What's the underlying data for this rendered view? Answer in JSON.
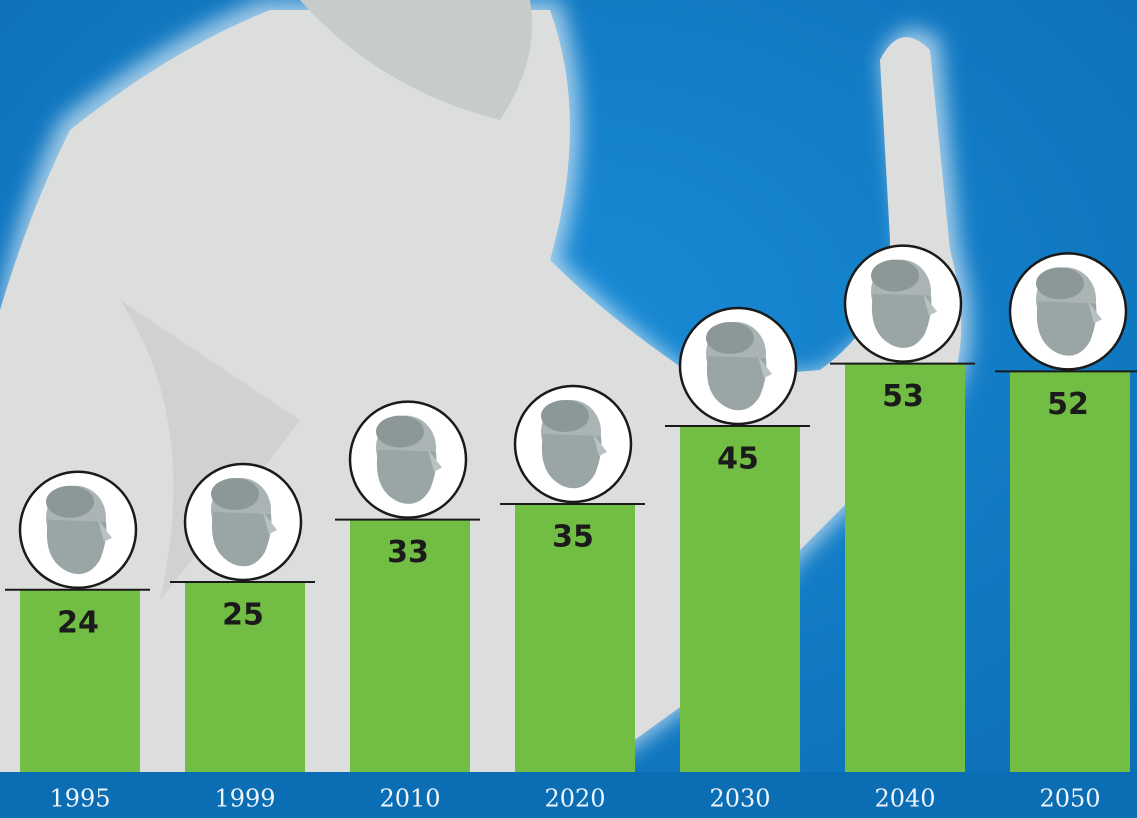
{
  "chart_data": {
    "type": "bar",
    "categories": [
      "1995",
      "1999",
      "2010",
      "2020",
      "2030",
      "2040",
      "2050"
    ],
    "values": [
      24,
      25,
      33,
      35,
      45,
      53,
      52
    ],
    "color": "#72be44"
  }
}
